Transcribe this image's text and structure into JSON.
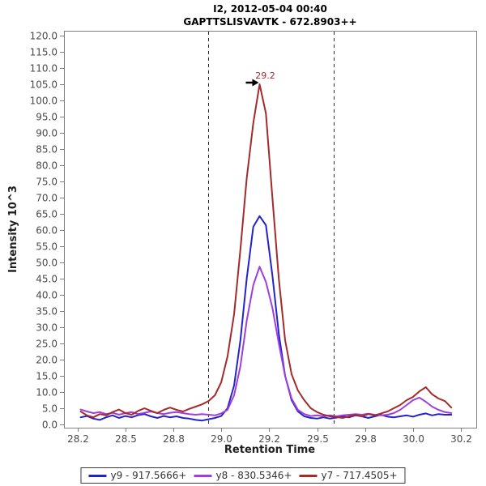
{
  "title": {
    "line1": "I2, 2012-05-04 00:40",
    "line2": "GAPTTSLISVAVTK - 672.8903++"
  },
  "axes": {
    "x_label": "Retention Time",
    "y_label": "Intensity 10^3",
    "x_range": [
      28.18,
      30.33
    ],
    "y_range": [
      -1,
      121.5
    ],
    "x_ticks": [
      {
        "v": 28.25,
        "label": "28.2"
      },
      {
        "v": 28.5,
        "label": "28.5"
      },
      {
        "v": 28.75,
        "label": "28.8"
      },
      {
        "v": 29.0,
        "label": "29.0"
      },
      {
        "v": 29.25,
        "label": "29.2"
      },
      {
        "v": 29.5,
        "label": "29.5"
      },
      {
        "v": 29.75,
        "label": "29.8"
      },
      {
        "v": 30.0,
        "label": "30.0"
      },
      {
        "v": 30.25,
        "label": "30.2"
      }
    ],
    "y_ticks": [
      {
        "v": 0,
        "label": "0.0"
      },
      {
        "v": 5,
        "label": "5.0"
      },
      {
        "v": 10,
        "label": "10.0"
      },
      {
        "v": 15,
        "label": "15.0"
      },
      {
        "v": 20,
        "label": "20.0"
      },
      {
        "v": 25,
        "label": "25.0"
      },
      {
        "v": 30,
        "label": "30.0"
      },
      {
        "v": 35,
        "label": "35.0"
      },
      {
        "v": 40,
        "label": "40.0"
      },
      {
        "v": 45,
        "label": "45.0"
      },
      {
        "v": 50,
        "label": "50.0"
      },
      {
        "v": 55,
        "label": "55.0"
      },
      {
        "v": 60,
        "label": "60.0"
      },
      {
        "v": 65,
        "label": "65.0"
      },
      {
        "v": 70,
        "label": "70.0"
      },
      {
        "v": 75,
        "label": "75.0"
      },
      {
        "v": 80,
        "label": "80.0"
      },
      {
        "v": 85,
        "label": "85.0"
      },
      {
        "v": 90,
        "label": "90.0"
      },
      {
        "v": 95,
        "label": "95.0"
      },
      {
        "v": 100,
        "label": "100.0"
      },
      {
        "v": 105,
        "label": "105.0"
      },
      {
        "v": 110,
        "label": "110.0"
      },
      {
        "v": 115,
        "label": "115.0"
      },
      {
        "v": 120,
        "label": "120.0"
      }
    ]
  },
  "colors": {
    "y9_blue": "#2323CC",
    "y8_purple": "#A03EDC",
    "y7_brown": "#A52A2A",
    "border_gray": "#808080",
    "boundary_dash": "#2b2b2b",
    "annotation_arrow": "#000000"
  },
  "chart_data": {
    "type": "line",
    "title": "I2, 2012-05-04 00:40 — GAPTTSLISVAVTK - 672.8903++",
    "xlabel": "Retention Time",
    "ylabel": "Intensity 10^3",
    "xlim": [
      28.18,
      30.33
    ],
    "ylim": [
      0,
      120
    ],
    "grid": false,
    "legend_position": "bottom",
    "peak_boundaries": [
      28.93,
      29.585
    ],
    "peak_annotation": {
      "text": "29.2",
      "rt": 29.2,
      "intensity": 105
    },
    "x": [
      28.267,
      28.3,
      28.333,
      28.367,
      28.4,
      28.433,
      28.467,
      28.5,
      28.533,
      28.567,
      28.6,
      28.633,
      28.667,
      28.7,
      28.733,
      28.767,
      28.8,
      28.833,
      28.867,
      28.9,
      28.933,
      28.967,
      29.0,
      29.033,
      29.067,
      29.1,
      29.133,
      29.167,
      29.2,
      29.233,
      29.267,
      29.3,
      29.333,
      29.367,
      29.4,
      29.433,
      29.467,
      29.5,
      29.533,
      29.567,
      29.6,
      29.633,
      29.667,
      29.7,
      29.733,
      29.767,
      29.8,
      29.833,
      29.867,
      29.9,
      29.933,
      29.967,
      30.0,
      30.033,
      30.067,
      30.1,
      30.133,
      30.167,
      30.2
    ],
    "series": [
      {
        "name": "y9 - 917.5666+",
        "color": "#2323CC",
        "values": [
          2.2,
          2.6,
          1.8,
          1.4,
          2.2,
          2.8,
          2.0,
          2.6,
          2.2,
          2.9,
          3.2,
          2.5,
          2.0,
          2.6,
          2.2,
          2.5,
          2.0,
          1.8,
          1.4,
          1.2,
          1.6,
          2.0,
          2.6,
          5.0,
          12.0,
          26.0,
          45.0,
          61.0,
          64.3,
          61.5,
          46.0,
          28.0,
          15.0,
          7.5,
          4.0,
          2.5,
          2.0,
          1.8,
          2.2,
          1.8,
          2.1,
          2.5,
          2.2,
          2.8,
          2.5,
          2.0,
          2.5,
          3.0,
          2.4,
          2.2,
          2.5,
          2.8,
          2.4,
          3.0,
          3.4,
          2.8,
          3.2,
          3.0,
          3.0
        ]
      },
      {
        "name": "y8 - 830.5346+",
        "color": "#A03EDC",
        "values": [
          4.6,
          4.0,
          3.5,
          3.8,
          3.2,
          3.6,
          3.0,
          3.5,
          3.8,
          3.2,
          3.6,
          4.0,
          3.5,
          3.2,
          3.6,
          3.8,
          3.5,
          3.2,
          3.0,
          3.2,
          3.0,
          2.8,
          3.4,
          4.5,
          9.0,
          18.0,
          32.0,
          43.0,
          48.7,
          44.0,
          36.0,
          25.0,
          15.0,
          8.0,
          4.5,
          3.2,
          2.6,
          2.8,
          2.5,
          2.8,
          2.5,
          2.8,
          3.0,
          3.2,
          3.0,
          3.3,
          3.0,
          2.8,
          3.0,
          3.5,
          4.5,
          6.0,
          7.5,
          8.3,
          7.0,
          5.5,
          4.5,
          3.8,
          3.5
        ]
      },
      {
        "name": "y7 - 717.4505+",
        "color": "#A52A2A",
        "values": [
          4.0,
          2.8,
          2.2,
          3.2,
          2.8,
          3.8,
          4.6,
          3.5,
          3.0,
          4.2,
          5.0,
          4.2,
          3.5,
          4.5,
          5.2,
          4.5,
          4.0,
          4.8,
          5.5,
          6.2,
          7.2,
          9.0,
          13.0,
          21.0,
          34.0,
          54.0,
          76.0,
          93.0,
          105.0,
          96.0,
          70.0,
          45.0,
          26.0,
          15.5,
          10.5,
          7.5,
          5.0,
          3.8,
          3.0,
          2.5,
          2.3,
          2.0,
          2.5,
          3.0,
          2.5,
          3.2,
          2.8,
          3.4,
          4.0,
          5.0,
          6.0,
          7.5,
          8.5,
          10.2,
          11.5,
          9.3,
          8.0,
          7.2,
          5.2
        ]
      }
    ]
  },
  "legend": {
    "items": [
      {
        "label": "y9 - 917.5666+",
        "color": "#2323CC"
      },
      {
        "label": "y8 - 830.5346+",
        "color": "#A03EDC"
      },
      {
        "label": "y7 - 717.4505+",
        "color": "#A52A2A"
      }
    ]
  }
}
